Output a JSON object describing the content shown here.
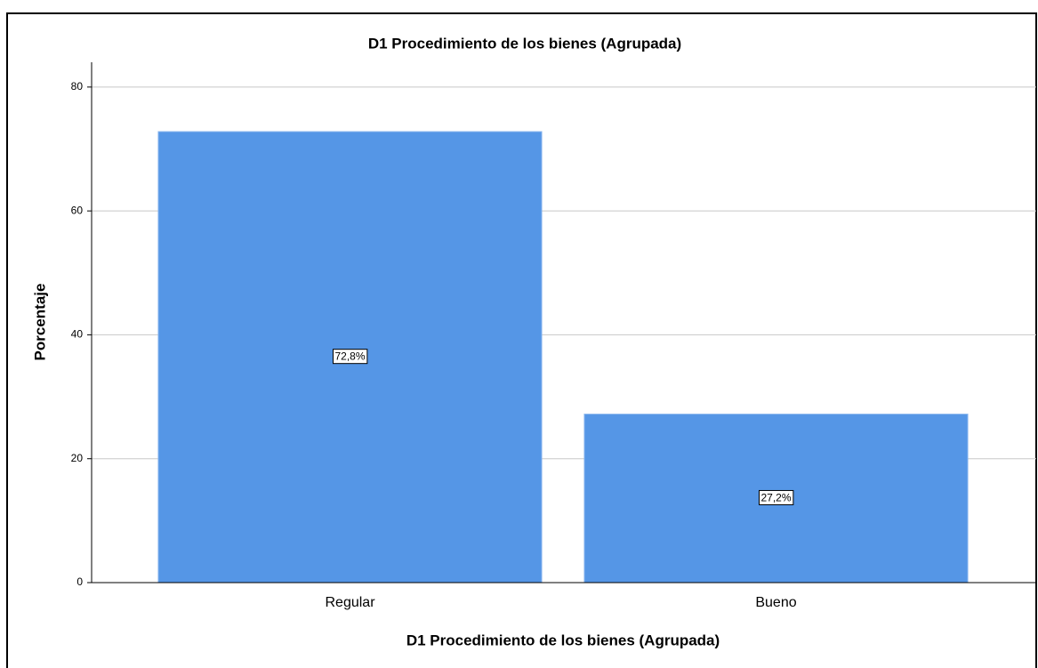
{
  "chart_data": {
    "type": "bar",
    "title": "D1 Procedimiento de los bienes (Agrupada)",
    "x_label": "D1 Procedimiento de los bienes (Agrupada)",
    "y_label": "Porcentaje",
    "categories": [
      "Regular",
      "Bueno"
    ],
    "values": [
      72.8,
      27.2
    ],
    "value_labels": [
      "72,8%",
      "27,2%"
    ],
    "color": "#5596e6",
    "ylim": [
      0,
      84
    ],
    "yticks": [
      0,
      20,
      40,
      60,
      80
    ],
    "grid": true
  }
}
